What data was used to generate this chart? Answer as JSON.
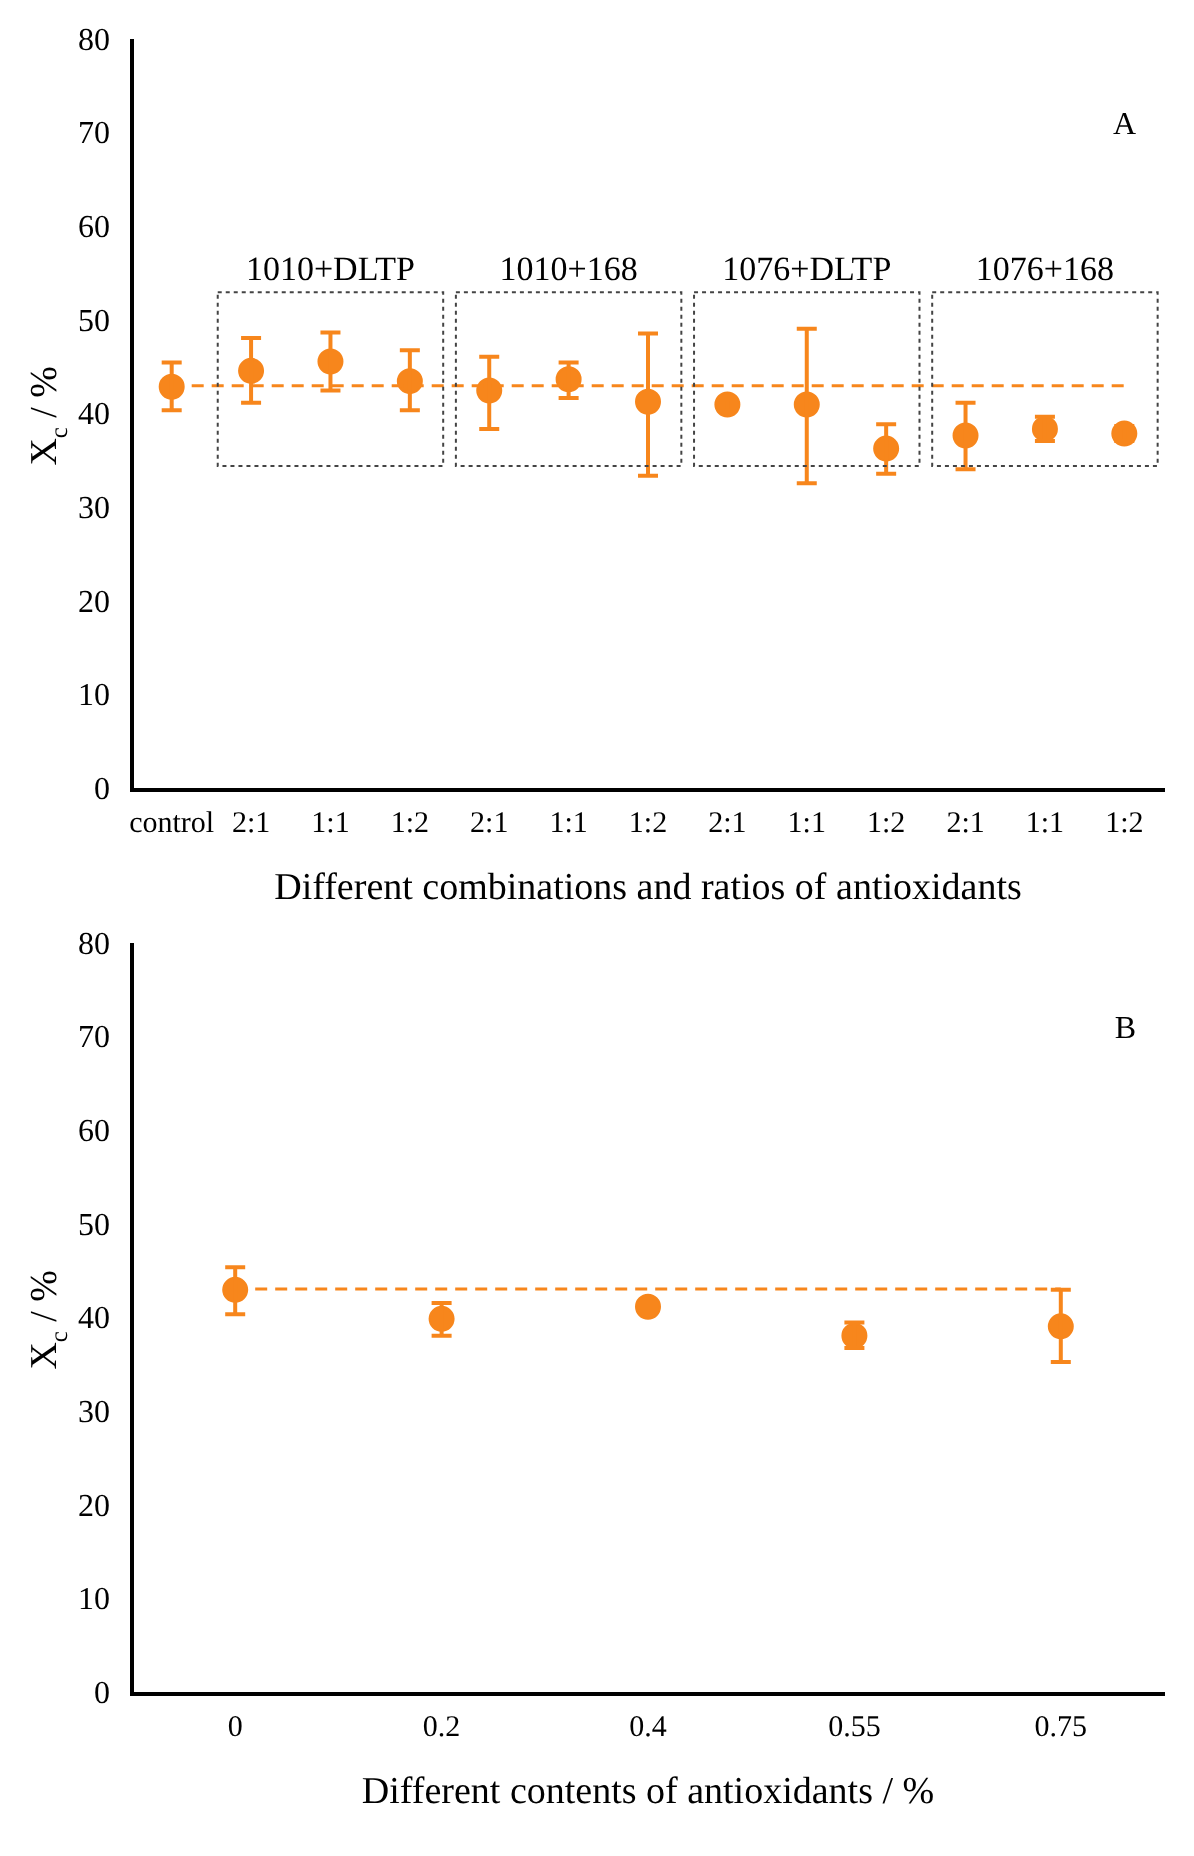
{
  "chart_data": [
    {
      "type": "scatter",
      "title": "A",
      "xlabel": "Different combinations and ratios of antioxidants",
      "ylabel": "X$_{c}$ / %",
      "categories": [
        "control",
        "2:1",
        "1:1",
        "1:2",
        "2:1",
        "1:1",
        "1:2",
        "2:1",
        "1:1",
        "1:2",
        "2:1",
        "1:1",
        "1:2"
      ],
      "series": [
        {
          "color": "#f7861c",
          "values": [
            43.1,
            44.8,
            45.8,
            43.7,
            42.7,
            43.9,
            41.5,
            41.2,
            41.2,
            36.5,
            37.9,
            38.6,
            38.1
          ],
          "errors": [
            [
              40.6,
              45.7
            ],
            [
              41.4,
              48.3
            ],
            [
              42.7,
              48.9
            ],
            [
              40.6,
              47.0
            ],
            [
              38.6,
              46.3
            ],
            [
              41.9,
              45.7
            ],
            [
              33.6,
              48.8
            ],
            [
              40.6,
              41.8
            ],
            [
              32.8,
              49.3
            ],
            [
              33.8,
              39.1
            ],
            [
              34.3,
              41.4
            ],
            [
              37.3,
              39.9
            ],
            [
              37.3,
              38.9
            ]
          ]
        }
      ],
      "ylim": [
        0,
        80
      ],
      "yticks": [
        0,
        10,
        20,
        30,
        40,
        50,
        60,
        70,
        80
      ],
      "grid": false,
      "legend": false,
      "marker": "circle",
      "ref_lines": [
        {
          "axis": "y",
          "value": 43.2,
          "color": "#f7861c",
          "line_style": "dashed"
        }
      ],
      "annotations": [
        "1010+DLTP",
        "1010+168",
        "1076+DLTP",
        "1076+168"
      ]
    },
    {
      "type": "scatter",
      "title": "B",
      "xlabel": "Different contents of antioxidants / %",
      "ylabel": "X$_{c}$ / %",
      "categories": [
        "0",
        "0.2",
        "0.4",
        "0.55",
        "0.75"
      ],
      "series": [
        {
          "color": "#f7861c",
          "values": [
            43.2,
            40.1,
            41.4,
            38.3,
            39.3
          ],
          "errors": [
            [
              40.6,
              45.6
            ],
            [
              38.3,
              41.8
            ],
            null,
            [
              37.0,
              39.7
            ],
            [
              35.5,
              43.2
            ]
          ]
        }
      ],
      "ylim": [
        0,
        80
      ],
      "yticks": [
        0,
        10,
        20,
        30,
        40,
        50,
        60,
        70,
        80
      ],
      "grid": false,
      "legend": false,
      "marker": "circle",
      "ref_lines": [
        {
          "axis": "y",
          "value": 43.3,
          "color": "#f7861c",
          "line_style": "dashed"
        }
      ]
    }
  ]
}
